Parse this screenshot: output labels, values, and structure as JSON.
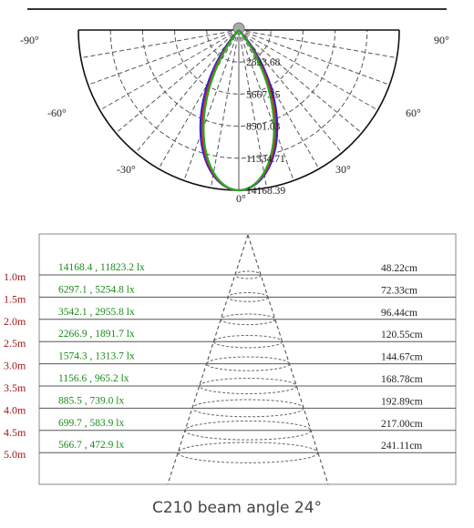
{
  "chart_data": [
    {
      "type": "polar",
      "angle_labels": [
        "-90°",
        "-60°",
        "-30°",
        "0°",
        "30°",
        "60°",
        "90°"
      ],
      "radial_labels": [
        "2833.68",
        "5667.35",
        "8501.03",
        "11334.71",
        "14168.39"
      ],
      "radial_max": 14168.39,
      "grid": true,
      "series": [
        {
          "color": "#2222dd",
          "half_angle_deg": 10.5,
          "peak": 14168.39
        },
        {
          "color": "#dd2222",
          "half_angle_deg": 10.0,
          "peak": 14168.39
        },
        {
          "color": "#22aa22",
          "half_angle_deg": 9.6,
          "peak": 14168.39
        }
      ]
    },
    {
      "type": "table",
      "rows": [
        {
          "distance": "1.0m",
          "lux": "14168.4 , 11823.2 lx",
          "diameter": "48.22cm"
        },
        {
          "distance": "1.5m",
          "lux": "6297.1 , 5254.8 lx",
          "diameter": "72.33cm"
        },
        {
          "distance": "2.0m",
          "lux": "3542.1 , 2955.8 lx",
          "diameter": "96.44cm"
        },
        {
          "distance": "2.5m",
          "lux": "2266.9 , 1891.7 lx",
          "diameter": "120.55cm"
        },
        {
          "distance": "3.0m",
          "lux": "1574.3 , 1313.7 lx",
          "diameter": "144.67cm"
        },
        {
          "distance": "3.5m",
          "lux": "1156.6 , 965.2 lx",
          "diameter": "168.78cm"
        },
        {
          "distance": "4.0m",
          "lux": "885.5 , 739.0 lx",
          "diameter": "192.89cm"
        },
        {
          "distance": "4.5m",
          "lux": "699.7 , 583.9 lx",
          "diameter": "217.00cm"
        },
        {
          "distance": "5.0m",
          "lux": "566.7 , 472.9 lx",
          "diameter": "241.11cm"
        }
      ],
      "colors": {
        "distance": "#a01818",
        "lux": "#1a8a1a",
        "diameter": "#222222"
      }
    }
  ],
  "caption": "C210 beam angle 24°"
}
